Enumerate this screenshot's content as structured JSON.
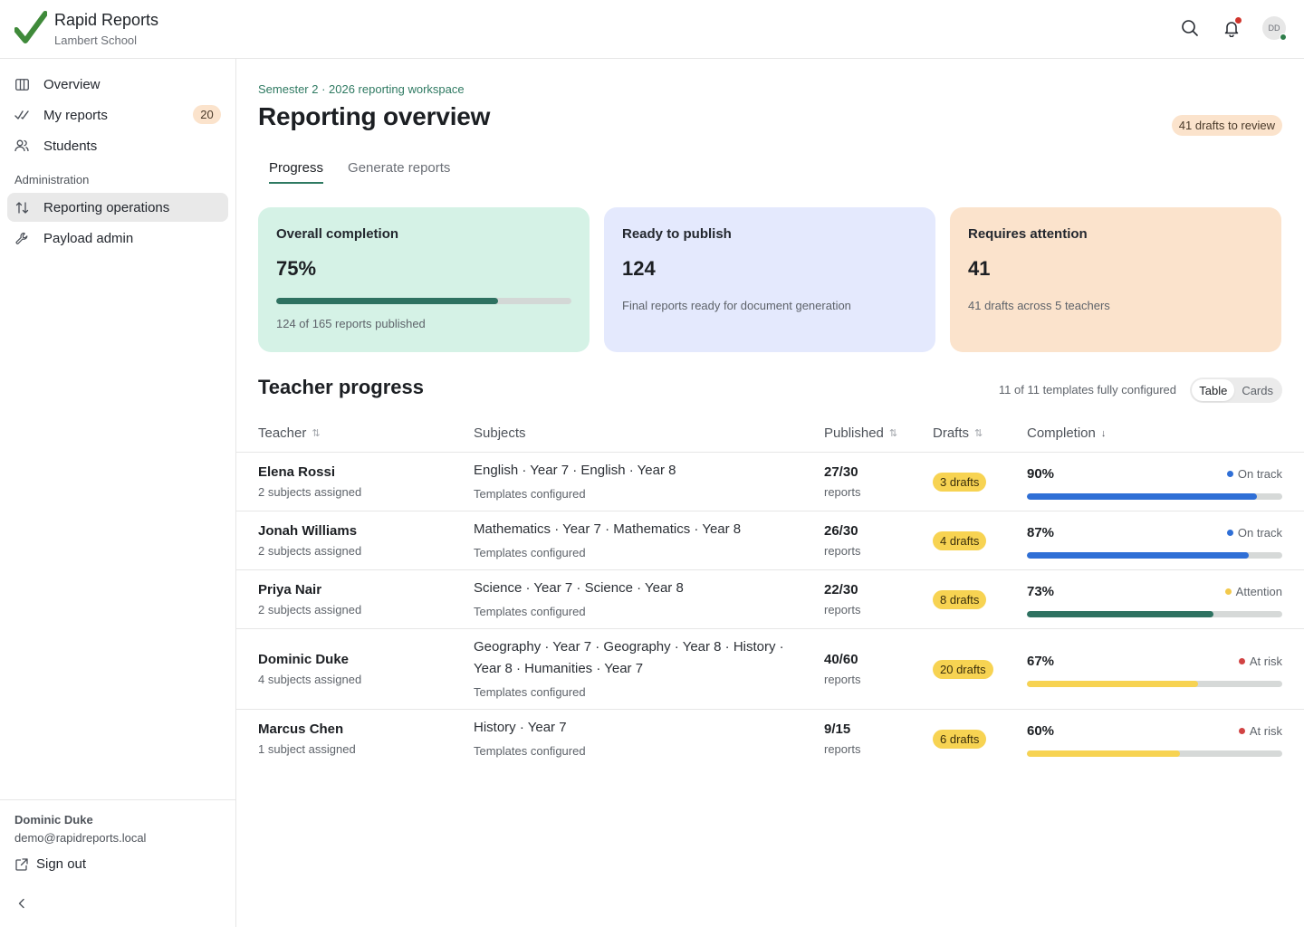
{
  "app": {
    "name": "Rapid Reports",
    "school": "Lambert School",
    "avatar_initials": "DD"
  },
  "sidebar": {
    "items": [
      {
        "label": "Overview",
        "icon": "columns-icon"
      },
      {
        "label": "My reports",
        "icon": "check-double-icon",
        "badge": "20"
      },
      {
        "label": "Students",
        "icon": "users-icon"
      }
    ],
    "section": "Administration",
    "admin_items": [
      {
        "label": "Reporting operations",
        "icon": "swap-icon",
        "active": true
      },
      {
        "label": "Payload admin",
        "icon": "wrench-icon"
      }
    ],
    "user": {
      "name": "Dominic Duke",
      "email": "demo@rapidreports.local"
    },
    "signout_label": "Sign out"
  },
  "header": {
    "eyebrow": "Semester 2 · 2026 reporting workspace",
    "title": "Reporting overview",
    "review_badge": "41 drafts to review"
  },
  "tabs": [
    {
      "label": "Progress",
      "active": true
    },
    {
      "label": "Generate reports",
      "active": false
    }
  ],
  "cards": {
    "completion": {
      "title": "Overall completion",
      "value": "75%",
      "progress": 0.75,
      "sub": "124 of 165 reports published"
    },
    "ready": {
      "title": "Ready to publish",
      "value": "124",
      "sub": "Final reports ready for document generation"
    },
    "attention": {
      "title": "Requires attention",
      "value": "41",
      "sub": "41 drafts across 5 teachers"
    }
  },
  "teacher_progress": {
    "title": "Teacher progress",
    "config_note": "11 of 11 templates fully configured",
    "view_toggle": [
      "Table",
      "Cards"
    ],
    "columns": {
      "teacher": "Teacher",
      "subjects": "Subjects",
      "published": "Published",
      "drafts": "Drafts",
      "completion": "Completion"
    },
    "rows": [
      {
        "name": "Elena Rossi",
        "assigned": "2 subjects assigned",
        "subjects": "English · Year 7 · English · Year 8",
        "templates": "Templates configured",
        "published": "27/30",
        "published_sub": "reports",
        "drafts": "3 drafts",
        "completion": "90%",
        "progress": 0.9,
        "status": "On track",
        "status_color": "#2f6fd6",
        "bar_color": "#2f6fd6"
      },
      {
        "name": "Jonah Williams",
        "assigned": "2 subjects assigned",
        "subjects": "Mathematics · Year 7 · Mathematics · Year 8",
        "templates": "Templates configured",
        "published": "26/30",
        "published_sub": "reports",
        "drafts": "4 drafts",
        "completion": "87%",
        "progress": 0.87,
        "status": "On track",
        "status_color": "#2f6fd6",
        "bar_color": "#2f6fd6"
      },
      {
        "name": "Priya Nair",
        "assigned": "2 subjects assigned",
        "subjects": "Science · Year 7 · Science · Year 8",
        "templates": "Templates configured",
        "published": "22/30",
        "published_sub": "reports",
        "drafts": "8 drafts",
        "completion": "73%",
        "progress": 0.73,
        "status": "Attention",
        "status_color": "#f2c94c",
        "bar_color": "#2e7261"
      },
      {
        "name": "Dominic Duke",
        "assigned": "4 subjects assigned",
        "subjects": "Geography · Year 7 · Geography · Year 8 · History · Year 8 · Humanities · Year 7",
        "templates": "Templates configured",
        "published": "40/60",
        "published_sub": "reports",
        "drafts": "20 drafts",
        "completion": "67%",
        "progress": 0.67,
        "status": "At risk",
        "status_color": "#d14343",
        "bar_color": "#f7d352"
      },
      {
        "name": "Marcus Chen",
        "assigned": "1 subject assigned",
        "subjects": "History · Year 7",
        "templates": "Templates configured",
        "published": "9/15",
        "published_sub": "reports",
        "drafts": "6 drafts",
        "completion": "60%",
        "progress": 0.6,
        "status": "At risk",
        "status_color": "#d14343",
        "bar_color": "#f7d352"
      }
    ]
  }
}
